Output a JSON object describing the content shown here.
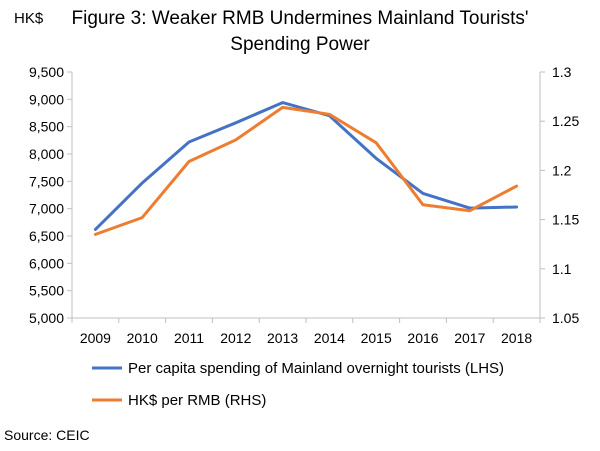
{
  "chart_data": {
    "type": "line",
    "title_line1": "Figure 3: Weaker RMB Undermines Mainland Tourists'",
    "title_line2": "Spending Power",
    "left_axis_unit": "HK$",
    "categories": [
      "2009",
      "2010",
      "2011",
      "2012",
      "2013",
      "2014",
      "2015",
      "2016",
      "2017",
      "2018"
    ],
    "y_left": {
      "min": 5000,
      "max": 9500,
      "step": 500,
      "tick_labels": [
        "5,000",
        "5,500",
        "6,000",
        "6,500",
        "7,000",
        "7,500",
        "8,000",
        "8,500",
        "9,000",
        "9,500"
      ]
    },
    "y_right": {
      "min": 1.05,
      "max": 1.3,
      "step": 0.05,
      "tick_labels": [
        "1.05",
        "1.1",
        "1.15",
        "1.2",
        "1.25",
        "1.3"
      ]
    },
    "series": [
      {
        "name": "Per capita spending of Mainland overnight tourists (LHS)",
        "axis": "left",
        "color": "#4472C4",
        "values": [
          6620,
          7470,
          8220,
          8570,
          8940,
          8700,
          7920,
          7280,
          7010,
          7030
        ]
      },
      {
        "name": "HK$ per RMB (RHS)",
        "axis": "right",
        "color": "#ED7D31",
        "values": [
          1.135,
          1.152,
          1.209,
          1.231,
          1.264,
          1.257,
          1.228,
          1.165,
          1.159,
          1.184
        ]
      }
    ],
    "grid": false,
    "legend_placement": "bottom-left"
  },
  "source": "Source: CEIC"
}
